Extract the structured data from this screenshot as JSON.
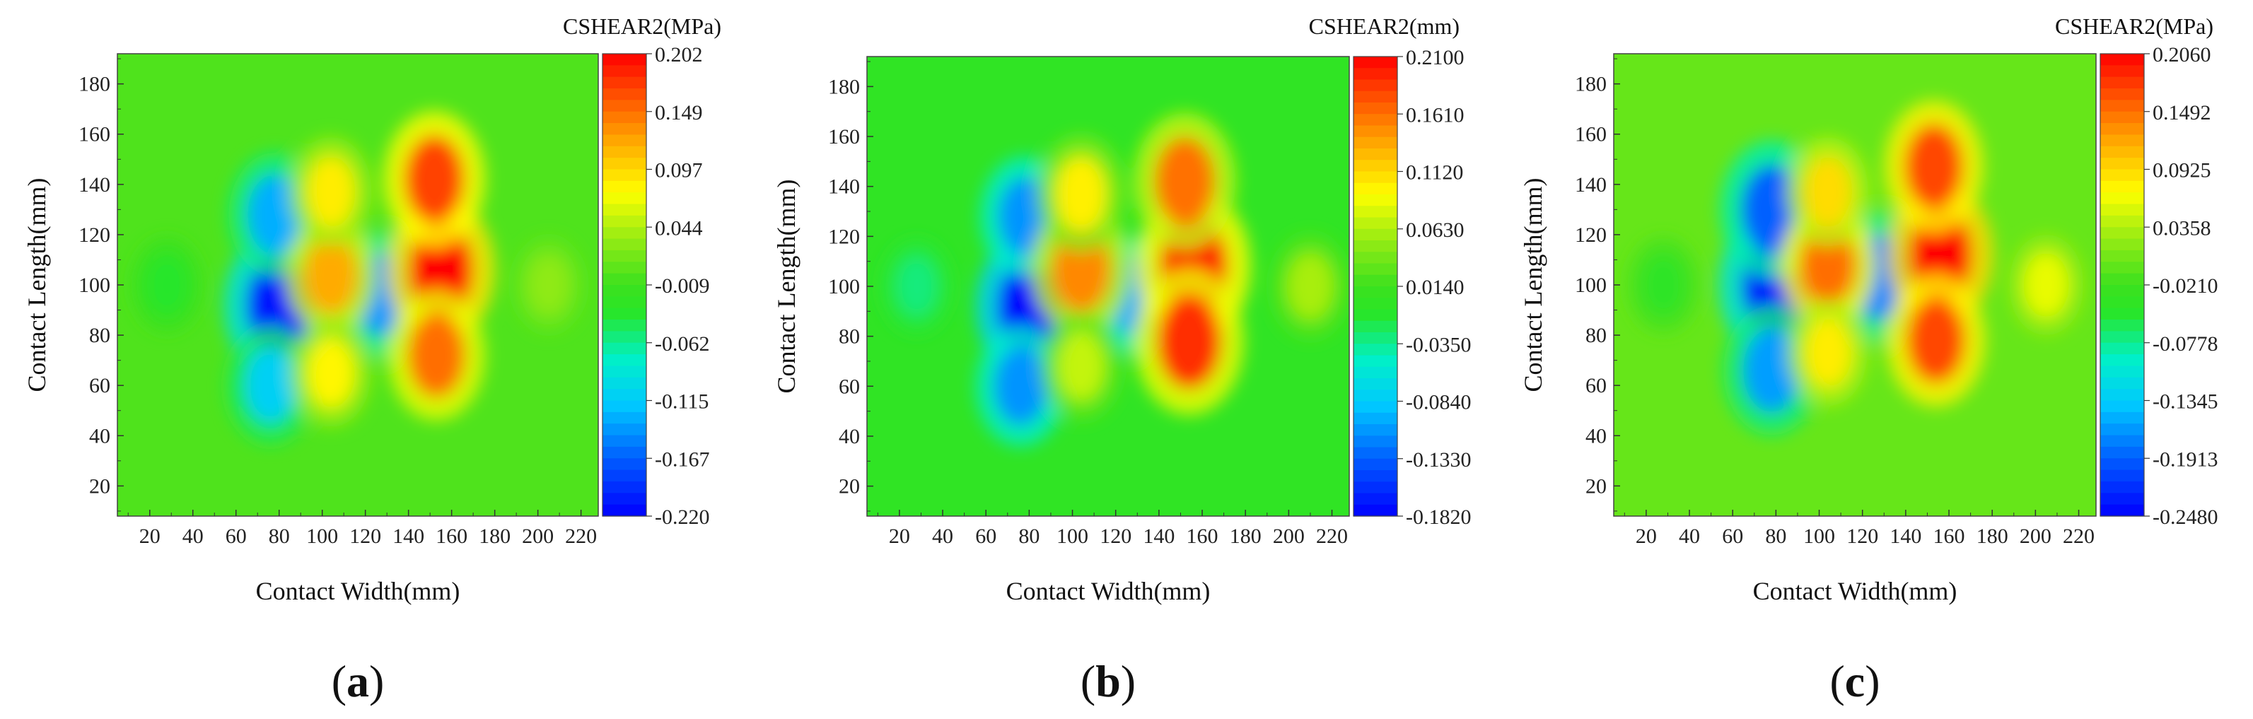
{
  "chart_data": [
    {
      "type": "heatmap",
      "panel_label": "a",
      "colorbar_title": "CSHEAR2(MPa)",
      "xlabel": "Contact Width(mm)",
      "ylabel": "Contact Length(mm)",
      "xlim": [
        5,
        228
      ],
      "ylim": [
        8,
        192
      ],
      "xticks": [
        "20",
        "40",
        "60",
        "80",
        "100",
        "120",
        "140",
        "160",
        "180",
        "200",
        "220"
      ],
      "yticks": [
        "20",
        "40",
        "60",
        "80",
        "100",
        "120",
        "140",
        "160",
        "180"
      ],
      "colorbar_ticks": [
        "0.202",
        "0.149",
        "0.097",
        "0.044",
        "-0.009",
        "-0.062",
        "-0.115",
        "-0.167",
        "-0.220"
      ],
      "vmin": -0.22,
      "vmax": 0.202,
      "features": [
        {
          "x": 80,
          "y": 92,
          "value": -0.21
        },
        {
          "x": 78,
          "y": 128,
          "value": -0.13
        },
        {
          "x": 76,
          "y": 60,
          "value": -0.11
        },
        {
          "x": 128,
          "y": 96,
          "value": -0.14
        },
        {
          "x": 104,
          "y": 104,
          "value": 0.12
        },
        {
          "x": 104,
          "y": 137,
          "value": 0.085
        },
        {
          "x": 104,
          "y": 65,
          "value": 0.08
        },
        {
          "x": 155,
          "y": 106,
          "value": 0.2
        },
        {
          "x": 152,
          "y": 142,
          "value": 0.17
        },
        {
          "x": 153,
          "y": 72,
          "value": 0.15
        },
        {
          "x": 28,
          "y": 100,
          "value": -0.035
        },
        {
          "x": 205,
          "y": 100,
          "value": 0.03
        }
      ]
    },
    {
      "type": "heatmap",
      "panel_label": "b",
      "colorbar_title": "CSHEAR2(mm)",
      "xlabel": "Contact Width(mm)",
      "ylabel": "Contact Length(mm)",
      "xlim": [
        5,
        228
      ],
      "ylim": [
        8,
        192
      ],
      "xticks": [
        "20",
        "40",
        "60",
        "80",
        "100",
        "120",
        "140",
        "160",
        "180",
        "200",
        "220"
      ],
      "yticks": [
        "20",
        "40",
        "60",
        "80",
        "100",
        "120",
        "140",
        "160",
        "180"
      ],
      "colorbar_ticks": [
        "0.2100",
        "0.1610",
        "0.1120",
        "0.0630",
        "0.0140",
        "-0.0350",
        "-0.0840",
        "-0.1330",
        "-0.1820"
      ],
      "vmin": -0.182,
      "vmax": 0.21,
      "features": [
        {
          "x": 80,
          "y": 92,
          "value": -0.18
        },
        {
          "x": 78,
          "y": 128,
          "value": -0.11
        },
        {
          "x": 76,
          "y": 60,
          "value": -0.11
        },
        {
          "x": 128,
          "y": 96,
          "value": -0.1
        },
        {
          "x": 104,
          "y": 107,
          "value": 0.15
        },
        {
          "x": 104,
          "y": 137,
          "value": 0.1
        },
        {
          "x": 104,
          "y": 68,
          "value": 0.07
        },
        {
          "x": 156,
          "y": 108,
          "value": 0.21
        },
        {
          "x": 152,
          "y": 142,
          "value": 0.16
        },
        {
          "x": 154,
          "y": 78,
          "value": 0.19
        },
        {
          "x": 28,
          "y": 100,
          "value": -0.03
        },
        {
          "x": 210,
          "y": 100,
          "value": 0.06
        }
      ]
    },
    {
      "type": "heatmap",
      "panel_label": "c",
      "colorbar_title": "CSHEAR2(MPa)",
      "xlabel": "Contact Width(mm)",
      "ylabel": "Contact Length(mm)",
      "xlim": [
        5,
        228
      ],
      "ylim": [
        8,
        192
      ],
      "xticks": [
        "20",
        "40",
        "60",
        "80",
        "100",
        "120",
        "140",
        "160",
        "180",
        "200",
        "220"
      ],
      "yticks": [
        "20",
        "40",
        "60",
        "80",
        "100",
        "120",
        "140",
        "160",
        "180"
      ],
      "colorbar_ticks": [
        "0.2060",
        "0.1492",
        "0.0925",
        "0.0358",
        "-0.0210",
        "-0.0778",
        "-0.1345",
        "-0.1913",
        "-0.2480"
      ],
      "vmin": -0.248,
      "vmax": 0.206,
      "features": [
        {
          "x": 80,
          "y": 100,
          "value": -0.245
        },
        {
          "x": 78,
          "y": 130,
          "value": -0.19
        },
        {
          "x": 78,
          "y": 66,
          "value": -0.16
        },
        {
          "x": 128,
          "y": 103,
          "value": -0.17
        },
        {
          "x": 104,
          "y": 108,
          "value": 0.15
        },
        {
          "x": 104,
          "y": 137,
          "value": 0.09
        },
        {
          "x": 104,
          "y": 73,
          "value": 0.08
        },
        {
          "x": 156,
          "y": 112,
          "value": 0.205
        },
        {
          "x": 153,
          "y": 147,
          "value": 0.17
        },
        {
          "x": 154,
          "y": 78,
          "value": 0.17
        },
        {
          "x": 28,
          "y": 100,
          "value": -0.04
        },
        {
          "x": 205,
          "y": 100,
          "value": 0.06
        }
      ]
    }
  ]
}
